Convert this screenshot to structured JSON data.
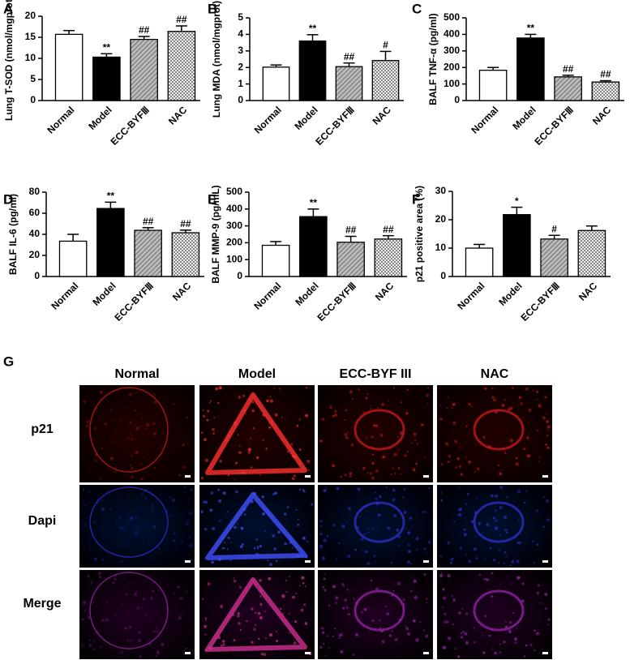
{
  "chart_data": [
    {
      "type": "bar",
      "panel": "A",
      "ylabel": "Lung T-SOD (nmol/mgprot)",
      "categories": [
        "Normal",
        "Model",
        "ECC-BYFⅢ",
        "NAC"
      ],
      "values": [
        15.7,
        10.3,
        14.5,
        16.4
      ],
      "errors": [
        0.9,
        0.8,
        0.7,
        1.3
      ],
      "annotations": [
        null,
        "**",
        "##",
        "##"
      ],
      "fills": [
        "white",
        "black",
        "hatched",
        "checkered"
      ],
      "ylim": [
        0,
        20
      ],
      "yticks": [
        0,
        5,
        10,
        15,
        20
      ]
    },
    {
      "type": "bar",
      "panel": "B",
      "ylabel": "Lung MDA (nmol/mgprot)",
      "categories": [
        "Normal",
        "Model",
        "ECC-BYFⅢ",
        "NAC"
      ],
      "values": [
        2.02,
        3.6,
        2.05,
        2.42
      ],
      "errors": [
        0.13,
        0.38,
        0.22,
        0.55
      ],
      "annotations": [
        null,
        "**",
        "##",
        "#"
      ],
      "fills": [
        "white",
        "black",
        "hatched",
        "checkered"
      ],
      "ylim": [
        0,
        5
      ],
      "yticks": [
        0,
        1,
        2,
        3,
        4,
        5
      ]
    },
    {
      "type": "bar",
      "panel": "C",
      "ylabel": "BALF TNF-α (pg/ml)",
      "categories": [
        "Normal",
        "Model",
        "ECC-BYFⅢ",
        "NAC"
      ],
      "values": [
        183,
        378,
        143,
        112
      ],
      "errors": [
        17,
        22,
        10,
        8
      ],
      "annotations": [
        null,
        "**",
        "##",
        "##"
      ],
      "fills": [
        "white",
        "black",
        "hatched",
        "checkered"
      ],
      "ylim": [
        0,
        500
      ],
      "yticks": [
        0,
        100,
        200,
        300,
        400,
        500
      ]
    },
    {
      "type": "bar",
      "panel": "D",
      "ylabel": "BALF IL-6 (pg/ml)",
      "categories": [
        "Normal",
        "Model",
        "ECC-BYFⅢ",
        "NAC"
      ],
      "values": [
        33.5,
        64.5,
        43.8,
        41.5
      ],
      "errors": [
        6.5,
        6,
        2.5,
        2.5
      ],
      "annotations": [
        null,
        "**",
        "##",
        "##"
      ],
      "fills": [
        "white",
        "black",
        "hatched",
        "checkered"
      ],
      "ylim": [
        0,
        80
      ],
      "yticks": [
        0,
        20,
        40,
        60,
        80
      ]
    },
    {
      "type": "bar",
      "panel": "E",
      "ylabel": "BALF MMP-9 (pg/mL)",
      "categories": [
        "Normal",
        "Model",
        "ECC-BYFⅢ",
        "NAC"
      ],
      "values": [
        185,
        355,
        203,
        222
      ],
      "errors": [
        22,
        45,
        35,
        20
      ],
      "annotations": [
        null,
        "**",
        "##",
        "##"
      ],
      "fills": [
        "white",
        "black",
        "hatched",
        "checkered"
      ],
      "ylim": [
        0,
        500
      ],
      "yticks": [
        0,
        100,
        200,
        300,
        400,
        500
      ]
    },
    {
      "type": "bar",
      "panel": "F",
      "ylabel": "p21 positive area (%)",
      "categories": [
        "Normal",
        "Model",
        "ECC-BYFⅢ",
        "NAC"
      ],
      "values": [
        10,
        21.8,
        13.2,
        16.2
      ],
      "errors": [
        1.3,
        2.6,
        1.3,
        1.6
      ],
      "annotations": [
        null,
        "*",
        "#",
        null
      ],
      "fills": [
        "white",
        "black",
        "hatched",
        "checkered"
      ],
      "ylim": [
        0,
        30
      ],
      "yticks": [
        0,
        10,
        20,
        30
      ]
    }
  ],
  "panel_g": {
    "label": "G",
    "columns": [
      "Normal",
      "Model",
      "ECC-BYF III",
      "NAC"
    ],
    "rows": [
      "p21",
      "Dapi",
      "Merge"
    ]
  }
}
